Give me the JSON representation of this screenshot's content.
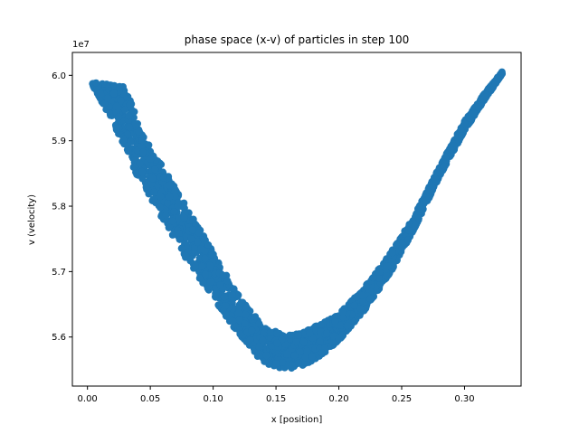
{
  "chart_data": {
    "type": "scatter",
    "title": "phase space (x-v) of particles in step 100",
    "xlabel": "x [position]",
    "ylabel": "v (velocity)",
    "y_offset_label": "1e7",
    "xlim": [
      -0.012,
      0.345
    ],
    "ylim": [
      55250000,
      60350000
    ],
    "x_ticks": [
      0.0,
      0.05,
      0.1,
      0.15,
      0.2,
      0.25,
      0.3
    ],
    "x_tick_labels": [
      "0.00",
      "0.05",
      "0.10",
      "0.15",
      "0.20",
      "0.25",
      "0.30"
    ],
    "y_ticks": [
      56000000,
      57000000,
      58000000,
      59000000,
      60000000
    ],
    "y_tick_labels": [
      "5.6",
      "5.7",
      "5.8",
      "5.9",
      "6.0"
    ],
    "grid": false,
    "marker_color": "#1f77b4",
    "series": [
      {
        "band_lower": [
          [
            0.004,
            59850000
          ],
          [
            0.02,
            59300000
          ],
          [
            0.04,
            58450000
          ],
          [
            0.06,
            57800000
          ],
          [
            0.08,
            57150000
          ],
          [
            0.1,
            56600000
          ],
          [
            0.12,
            56050000
          ],
          [
            0.14,
            55600000
          ],
          [
            0.155,
            55500000
          ],
          [
            0.17,
            55550000
          ],
          [
            0.185,
            55700000
          ],
          [
            0.2,
            55950000
          ],
          [
            0.22,
            56400000
          ],
          [
            0.24,
            56950000
          ],
          [
            0.26,
            57650000
          ],
          [
            0.28,
            58450000
          ],
          [
            0.3,
            59150000
          ],
          [
            0.315,
            59600000
          ],
          [
            0.33,
            60020000
          ]
        ],
        "band_upper": [
          [
            0.004,
            59900000
          ],
          [
            0.02,
            59850000
          ],
          [
            0.03,
            59850000
          ],
          [
            0.045,
            59050000
          ],
          [
            0.06,
            58600000
          ],
          [
            0.08,
            57950000
          ],
          [
            0.1,
            57300000
          ],
          [
            0.12,
            56650000
          ],
          [
            0.14,
            56150000
          ],
          [
            0.155,
            56050000
          ],
          [
            0.17,
            56050000
          ],
          [
            0.185,
            56200000
          ],
          [
            0.2,
            56350000
          ],
          [
            0.22,
            56750000
          ],
          [
            0.24,
            57250000
          ],
          [
            0.26,
            57850000
          ],
          [
            0.28,
            58600000
          ],
          [
            0.3,
            59300000
          ],
          [
            0.315,
            59700000
          ],
          [
            0.33,
            60060000
          ]
        ]
      }
    ]
  }
}
